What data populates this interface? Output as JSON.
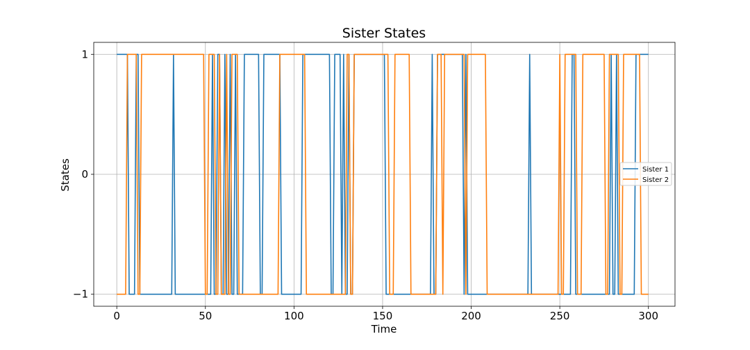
{
  "chart_data": {
    "type": "line",
    "title": "Sister States",
    "xlabel": "Time",
    "ylabel": "States",
    "xlim": [
      -13,
      315
    ],
    "ylim": [
      -1.1,
      1.1
    ],
    "xticks": [
      0,
      50,
      100,
      150,
      200,
      250,
      300
    ],
    "xtick_labels": [
      "0",
      "50",
      "100",
      "150",
      "200",
      "250",
      "300"
    ],
    "yticks": [
      -1,
      0,
      1
    ],
    "ytick_labels": [
      "−1",
      "0",
      "1"
    ],
    "grid": true,
    "legend_position": "center-right",
    "series": [
      {
        "name": "Sister 1",
        "color": "#1f77b4",
        "points": [
          [
            0,
            1
          ],
          [
            6,
            1
          ],
          [
            7,
            -1
          ],
          [
            10,
            -1
          ],
          [
            11,
            1
          ],
          [
            12,
            1
          ],
          [
            13,
            -1
          ],
          [
            31,
            -1
          ],
          [
            32,
            1
          ],
          [
            32,
            1
          ],
          [
            33,
            -1
          ],
          [
            53,
            -1
          ],
          [
            54,
            1
          ],
          [
            54,
            1
          ],
          [
            55,
            -1
          ],
          [
            56,
            -1
          ],
          [
            57,
            1
          ],
          [
            58,
            1
          ],
          [
            59,
            -1
          ],
          [
            60,
            -1
          ],
          [
            61,
            1
          ],
          [
            61,
            1
          ],
          [
            62,
            -1
          ],
          [
            63,
            -1
          ],
          [
            64,
            1
          ],
          [
            64,
            1
          ],
          [
            65,
            -1
          ],
          [
            66,
            -1
          ],
          [
            67,
            1
          ],
          [
            67,
            1
          ],
          [
            68,
            -1
          ],
          [
            71,
            -1
          ],
          [
            72,
            1
          ],
          [
            80,
            1
          ],
          [
            81,
            -1
          ],
          [
            82,
            -1
          ],
          [
            83,
            1
          ],
          [
            92,
            1
          ],
          [
            93,
            -1
          ],
          [
            104,
            -1
          ],
          [
            105,
            1
          ],
          [
            120,
            1
          ],
          [
            121,
            -1
          ],
          [
            122,
            -1
          ],
          [
            123,
            1
          ],
          [
            126,
            1
          ],
          [
            127,
            -1
          ],
          [
            127,
            -1
          ],
          [
            128,
            1
          ],
          [
            128,
            1
          ],
          [
            129,
            -1
          ],
          [
            130,
            -1
          ],
          [
            131,
            1
          ],
          [
            131,
            1
          ],
          [
            132,
            -1
          ],
          [
            133,
            -1
          ],
          [
            134,
            1
          ],
          [
            151,
            1
          ],
          [
            152,
            -1
          ],
          [
            177,
            -1
          ],
          [
            178,
            1
          ],
          [
            178,
            1
          ],
          [
            179,
            -1
          ],
          [
            180,
            -1
          ],
          [
            181,
            1
          ],
          [
            195,
            1
          ],
          [
            196,
            -1
          ],
          [
            196,
            -1
          ],
          [
            197,
            1
          ],
          [
            197,
            1
          ],
          [
            198,
            -1
          ],
          [
            232,
            -1
          ],
          [
            233,
            1
          ],
          [
            233,
            1
          ],
          [
            234,
            -1
          ],
          [
            256,
            -1
          ],
          [
            257,
            1
          ],
          [
            258,
            1
          ],
          [
            259,
            -1
          ],
          [
            278,
            -1
          ],
          [
            279,
            1
          ],
          [
            279,
            1
          ],
          [
            280,
            -1
          ],
          [
            281,
            -1
          ],
          [
            282,
            1
          ],
          [
            282,
            1
          ],
          [
            283,
            -1
          ],
          [
            292,
            -1
          ],
          [
            293,
            1
          ],
          [
            300,
            1
          ]
        ]
      },
      {
        "name": "Sister 2",
        "color": "#ff7f0e",
        "points": [
          [
            0,
            -1
          ],
          [
            5,
            -1
          ],
          [
            6,
            1
          ],
          [
            11,
            1
          ],
          [
            12,
            -1
          ],
          [
            13,
            -1
          ],
          [
            14,
            1
          ],
          [
            49,
            1
          ],
          [
            50,
            -1
          ],
          [
            51,
            -1
          ],
          [
            52,
            1
          ],
          [
            55,
            1
          ],
          [
            56,
            -1
          ],
          [
            57,
            -1
          ],
          [
            58,
            1
          ],
          [
            58,
            1
          ],
          [
            59,
            -1
          ],
          [
            61,
            -1
          ],
          [
            62,
            1
          ],
          [
            62,
            1
          ],
          [
            63,
            -1
          ],
          [
            64,
            -1
          ],
          [
            65,
            1
          ],
          [
            68,
            1
          ],
          [
            69,
            -1
          ],
          [
            91,
            -1
          ],
          [
            92,
            1
          ],
          [
            106,
            1
          ],
          [
            107,
            -1
          ],
          [
            129,
            -1
          ],
          [
            130,
            1
          ],
          [
            131,
            1
          ],
          [
            132,
            -1
          ],
          [
            133,
            -1
          ],
          [
            134,
            1
          ],
          [
            153,
            1
          ],
          [
            154,
            -1
          ],
          [
            156,
            -1
          ],
          [
            157,
            1
          ],
          [
            165,
            1
          ],
          [
            166,
            -1
          ],
          [
            180,
            -1
          ],
          [
            181,
            1
          ],
          [
            183,
            1
          ],
          [
            184,
            -1
          ],
          [
            184,
            -1
          ],
          [
            185,
            1
          ],
          [
            196,
            1
          ],
          [
            197,
            -1
          ],
          [
            197,
            -1
          ],
          [
            198,
            1
          ],
          [
            208,
            1
          ],
          [
            209,
            -1
          ],
          [
            249,
            -1
          ],
          [
            250,
            1
          ],
          [
            250,
            1
          ],
          [
            251,
            -1
          ],
          [
            252,
            -1
          ],
          [
            253,
            1
          ],
          [
            259,
            1
          ],
          [
            260,
            -1
          ],
          [
            262,
            -1
          ],
          [
            263,
            1
          ],
          [
            275,
            1
          ],
          [
            276,
            -1
          ],
          [
            277,
            -1
          ],
          [
            278,
            1
          ],
          [
            283,
            1
          ],
          [
            284,
            -1
          ],
          [
            285,
            -1
          ],
          [
            286,
            1
          ],
          [
            295,
            1
          ],
          [
            296,
            -1
          ],
          [
            300,
            -1
          ]
        ]
      }
    ]
  }
}
